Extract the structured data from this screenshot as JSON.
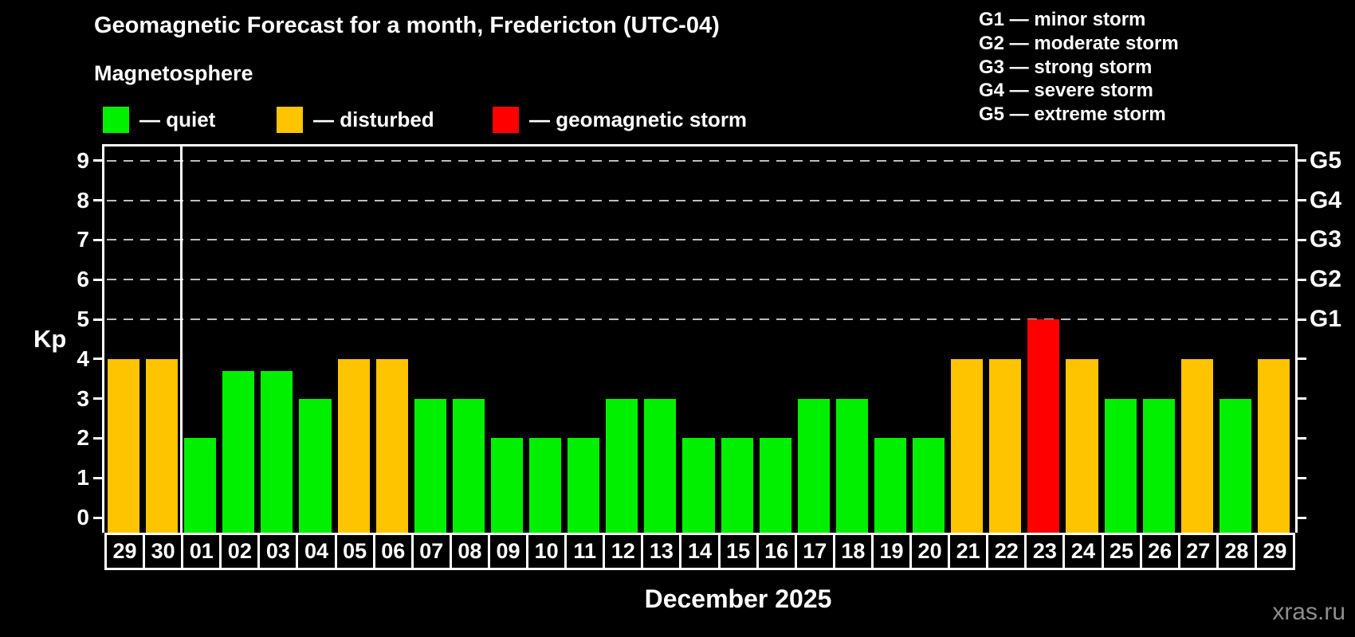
{
  "header": {
    "title": "Geomagnetic Forecast for a month, Fredericton (UTC-04)",
    "subtitle": "Magnetosphere"
  },
  "legend": {
    "items": [
      {
        "key": "quiet",
        "label": "— quiet",
        "color": "#00f000"
      },
      {
        "key": "disturbed",
        "label": "— disturbed",
        "color": "#ffc400"
      },
      {
        "key": "storm",
        "label": "— geomagnetic storm",
        "color": "#ff0000"
      }
    ]
  },
  "g_legend": {
    "items": [
      "G1 — minor storm",
      "G2 — moderate storm",
      "G3 — strong storm",
      "G4 — severe storm",
      "G5 — extreme storm"
    ]
  },
  "chart_data": {
    "type": "bar",
    "title": "Geomagnetic Forecast for a month, Fredericton (UTC-04)",
    "subtitle": "Magnetosphere",
    "ylabel": "Kp",
    "x_title": "December 2025",
    "ylim": [
      0,
      9
    ],
    "yticks": [
      0,
      1,
      2,
      3,
      4,
      5,
      6,
      7,
      8,
      9
    ],
    "gridlines_at": [
      5,
      6,
      7,
      8,
      9
    ],
    "grid": "dashed horizontal lines at storm levels only",
    "legend_position": "top-left",
    "right_axis_labels": [
      {
        "kp": 5,
        "label": "G1"
      },
      {
        "kp": 6,
        "label": "G2"
      },
      {
        "kp": 7,
        "label": "G3"
      },
      {
        "kp": 8,
        "label": "G4"
      },
      {
        "kp": 9,
        "label": "G5"
      }
    ],
    "separator_after_index": 1,
    "categories": [
      "29",
      "30",
      "01",
      "02",
      "03",
      "04",
      "05",
      "06",
      "07",
      "08",
      "09",
      "10",
      "11",
      "12",
      "13",
      "14",
      "15",
      "16",
      "17",
      "18",
      "19",
      "20",
      "21",
      "22",
      "23",
      "24",
      "25",
      "26",
      "27",
      "28",
      "29"
    ],
    "values": [
      4,
      4,
      2,
      3.7,
      3.7,
      3,
      4,
      4,
      3,
      3,
      2,
      2,
      2,
      3,
      3,
      2,
      2,
      2,
      3,
      3,
      2,
      2,
      4,
      4,
      5,
      4,
      3,
      3,
      4,
      3,
      4
    ],
    "statuses": [
      "disturbed",
      "disturbed",
      "quiet",
      "quiet",
      "quiet",
      "quiet",
      "disturbed",
      "disturbed",
      "quiet",
      "quiet",
      "quiet",
      "quiet",
      "quiet",
      "quiet",
      "quiet",
      "quiet",
      "quiet",
      "quiet",
      "quiet",
      "quiet",
      "quiet",
      "quiet",
      "disturbed",
      "disturbed",
      "storm",
      "disturbed",
      "quiet",
      "quiet",
      "disturbed",
      "quiet",
      "disturbed"
    ]
  },
  "watermark": "xras.ru",
  "colors": {
    "quiet": "#00f000",
    "disturbed": "#ffc400",
    "storm": "#ff0000",
    "background": "#000000",
    "axis": "#ffffff",
    "gridline": "#bdbdbd",
    "watermark": "#8d8d8d"
  }
}
